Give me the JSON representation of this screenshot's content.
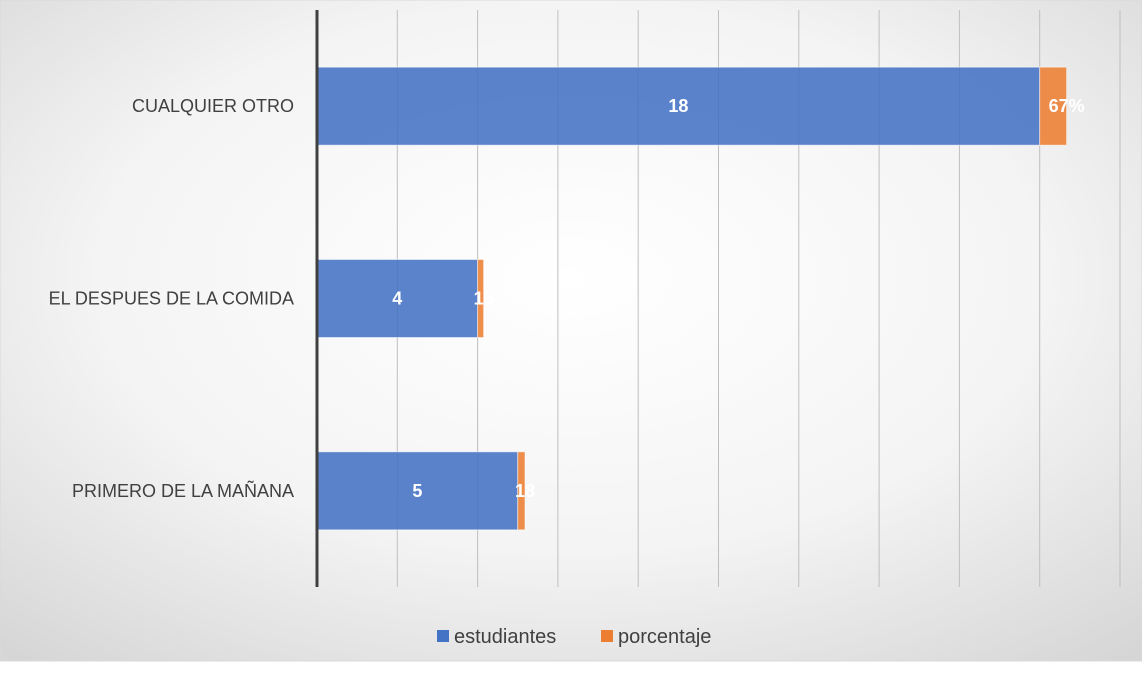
{
  "chart_data": {
    "type": "bar",
    "orientation": "horizontal",
    "stacked": true,
    "categories": [
      "CUALQUIER OTRO",
      "EL DESPUES DE LA COMIDA ",
      "PRIMERO DE LA MAÑANA"
    ],
    "series": [
      {
        "name": "estudiantes",
        "values": [
          18,
          4,
          5
        ],
        "labels": [
          "18",
          "4",
          "5"
        ],
        "color": "#4472C4"
      },
      {
        "name": "porcentaje",
        "values": [
          0.67,
          0.15,
          0.18
        ],
        "labels": [
          "67%",
          "15",
          "18"
        ],
        "color": "#ED7D31"
      }
    ],
    "xlim": [
      0,
      20
    ],
    "x_tick_step": 2,
    "title": "",
    "xlabel": "",
    "ylabel": "",
    "grid": true,
    "legend": "bottom-center",
    "background": "radial-white-grey"
  }
}
